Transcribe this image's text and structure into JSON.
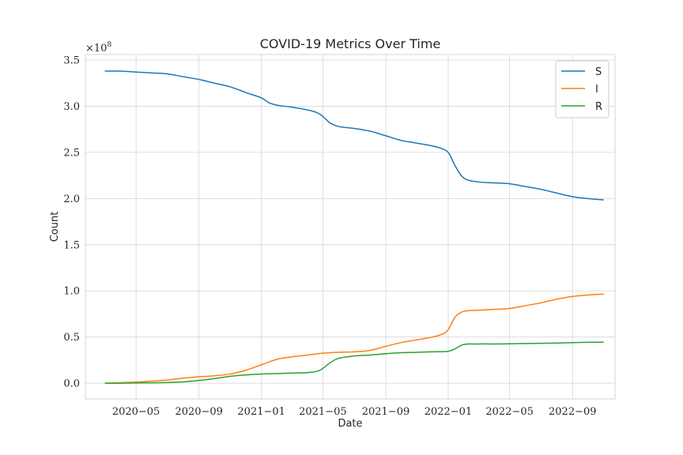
{
  "chart_data": {
    "type": "line",
    "title": "COVID-19 Metrics Over Time",
    "xlabel": "Date",
    "ylabel": "Count",
    "y_offset_text": "×10^8",
    "y_offset_base": "×10",
    "y_offset_exp": "8",
    "x_ticks": [
      "2020−05",
      "2020−09",
      "2021−01",
      "2021−05",
      "2021−09",
      "2022−01",
      "2022−05",
      "2022−09"
    ],
    "x_tick_dates": [
      "2020-05-01",
      "2020-09-01",
      "2021-01-01",
      "2021-05-01",
      "2021-09-01",
      "2022-01-01",
      "2022-05-01",
      "2022-09-01"
    ],
    "y_ticks": [
      "0.0",
      "0.5",
      "1.0",
      "1.5",
      "2.0",
      "2.5",
      "3.0",
      "3.5"
    ],
    "y_tick_values": [
      0,
      0.5,
      1.0,
      1.5,
      2.0,
      2.5,
      3.0,
      3.5
    ],
    "xlim": [
      "2020-01-23",
      "2022-11-23"
    ],
    "ylim": [
      -0.17,
      3.56
    ],
    "grid": true,
    "legend_position": "top-right",
    "series": [
      {
        "name": "S",
        "color": "#1f77b4",
        "x": [
          "2020-03-01",
          "2020-04-01",
          "2020-05-01",
          "2020-06-01",
          "2020-07-01",
          "2020-08-01",
          "2020-09-01",
          "2020-10-01",
          "2020-11-01",
          "2020-12-01",
          "2021-01-01",
          "2021-01-15",
          "2021-02-01",
          "2021-03-01",
          "2021-04-01",
          "2021-04-20",
          "2021-05-01",
          "2021-05-15",
          "2021-06-01",
          "2021-07-01",
          "2021-08-01",
          "2021-09-01",
          "2021-10-01",
          "2021-11-01",
          "2021-12-01",
          "2021-12-15",
          "2022-01-01",
          "2022-01-15",
          "2022-02-01",
          "2022-03-01",
          "2022-04-01",
          "2022-05-01",
          "2022-06-01",
          "2022-07-01",
          "2022-08-01",
          "2022-09-01",
          "2022-10-01",
          "2022-11-01"
        ],
        "values": [
          3.38,
          3.38,
          3.37,
          3.36,
          3.35,
          3.32,
          3.29,
          3.25,
          3.21,
          3.15,
          3.09,
          3.04,
          3.01,
          2.99,
          2.96,
          2.93,
          2.89,
          2.82,
          2.78,
          2.76,
          2.73,
          2.68,
          2.63,
          2.6,
          2.57,
          2.55,
          2.5,
          2.35,
          2.22,
          2.18,
          2.17,
          2.16,
          2.13,
          2.1,
          2.06,
          2.02,
          2.0,
          1.985
        ]
      },
      {
        "name": "I",
        "color": "#ff7f0e",
        "x": [
          "2020-03-01",
          "2020-04-01",
          "2020-05-01",
          "2020-06-01",
          "2020-07-01",
          "2020-08-01",
          "2020-09-01",
          "2020-10-01",
          "2020-11-01",
          "2020-12-01",
          "2021-01-01",
          "2021-02-01",
          "2021-03-01",
          "2021-04-01",
          "2021-05-01",
          "2021-06-01",
          "2021-07-01",
          "2021-08-01",
          "2021-09-01",
          "2021-10-01",
          "2021-11-01",
          "2021-12-01",
          "2021-12-20",
          "2022-01-01",
          "2022-01-15",
          "2022-02-01",
          "2022-03-01",
          "2022-04-01",
          "2022-05-01",
          "2022-06-01",
          "2022-07-01",
          "2022-08-01",
          "2022-09-01",
          "2022-10-01",
          "2022-11-01"
        ],
        "values": [
          0.0,
          0.005,
          0.012,
          0.022,
          0.035,
          0.055,
          0.07,
          0.08,
          0.1,
          0.14,
          0.2,
          0.26,
          0.285,
          0.305,
          0.325,
          0.335,
          0.34,
          0.355,
          0.4,
          0.44,
          0.47,
          0.5,
          0.53,
          0.58,
          0.72,
          0.78,
          0.79,
          0.8,
          0.81,
          0.84,
          0.87,
          0.91,
          0.94,
          0.955,
          0.965
        ]
      },
      {
        "name": "R",
        "color": "#2ca02c",
        "x": [
          "2020-03-01",
          "2020-04-01",
          "2020-05-01",
          "2020-06-01",
          "2020-07-01",
          "2020-08-01",
          "2020-09-01",
          "2020-10-01",
          "2020-11-01",
          "2020-12-01",
          "2021-01-01",
          "2021-02-01",
          "2021-03-01",
          "2021-04-01",
          "2021-04-20",
          "2021-05-01",
          "2021-05-15",
          "2021-06-01",
          "2021-07-01",
          "2021-08-01",
          "2021-09-01",
          "2021-10-01",
          "2021-11-01",
          "2021-12-01",
          "2022-01-01",
          "2022-01-15",
          "2022-02-01",
          "2022-03-01",
          "2022-04-01",
          "2022-05-01",
          "2022-06-01",
          "2022-07-01",
          "2022-08-01",
          "2022-09-01",
          "2022-10-01",
          "2022-11-01"
        ],
        "values": [
          0.0,
          0.0,
          0.002,
          0.004,
          0.008,
          0.015,
          0.03,
          0.05,
          0.075,
          0.09,
          0.1,
          0.105,
          0.11,
          0.115,
          0.13,
          0.16,
          0.22,
          0.27,
          0.295,
          0.305,
          0.32,
          0.33,
          0.335,
          0.34,
          0.345,
          0.375,
          0.42,
          0.425,
          0.425,
          0.427,
          0.43,
          0.432,
          0.435,
          0.44,
          0.443,
          0.445
        ]
      }
    ]
  }
}
